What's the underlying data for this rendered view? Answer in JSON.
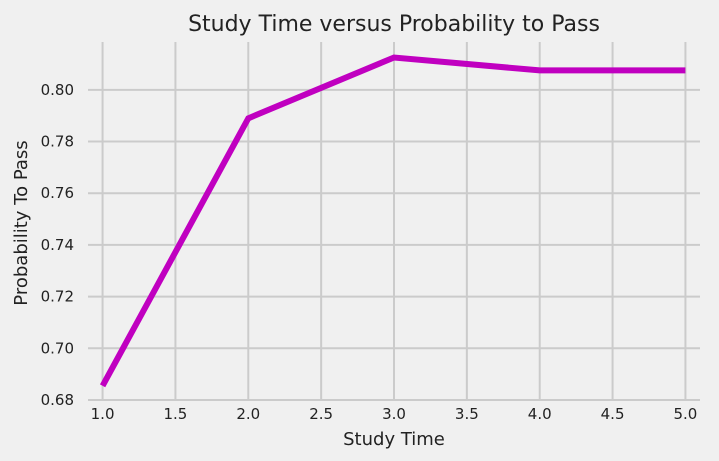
{
  "chart_data": {
    "type": "line",
    "title": "Study Time versus Probability to Pass",
    "xlabel": "Study Time",
    "ylabel": "Probability To Pass",
    "xlim": [
      0.9,
      5.1
    ],
    "ylim": [
      0.68,
      0.8185
    ],
    "xticks": [
      1.0,
      1.5,
      2.0,
      2.5,
      3.0,
      3.5,
      4.0,
      4.5,
      5.0
    ],
    "xtick_labels": [
      "1.0",
      "1.5",
      "2.0",
      "2.5",
      "3.0",
      "3.5",
      "4.0",
      "4.5",
      "5.0"
    ],
    "yticks": [
      0.68,
      0.7,
      0.72,
      0.74,
      0.76,
      0.78,
      0.8
    ],
    "ytick_labels": [
      "0.68",
      "0.70",
      "0.72",
      "0.74",
      "0.76",
      "0.78",
      "0.80"
    ],
    "grid": true,
    "series": [
      {
        "color": "#c000c0",
        "x": [
          1,
          2,
          3,
          4,
          5
        ],
        "y": [
          0.6855,
          0.789,
          0.8125,
          0.8075,
          0.8075
        ]
      }
    ],
    "background_color": "#f0f0f0",
    "grid_color": "#cbcbcb"
  }
}
